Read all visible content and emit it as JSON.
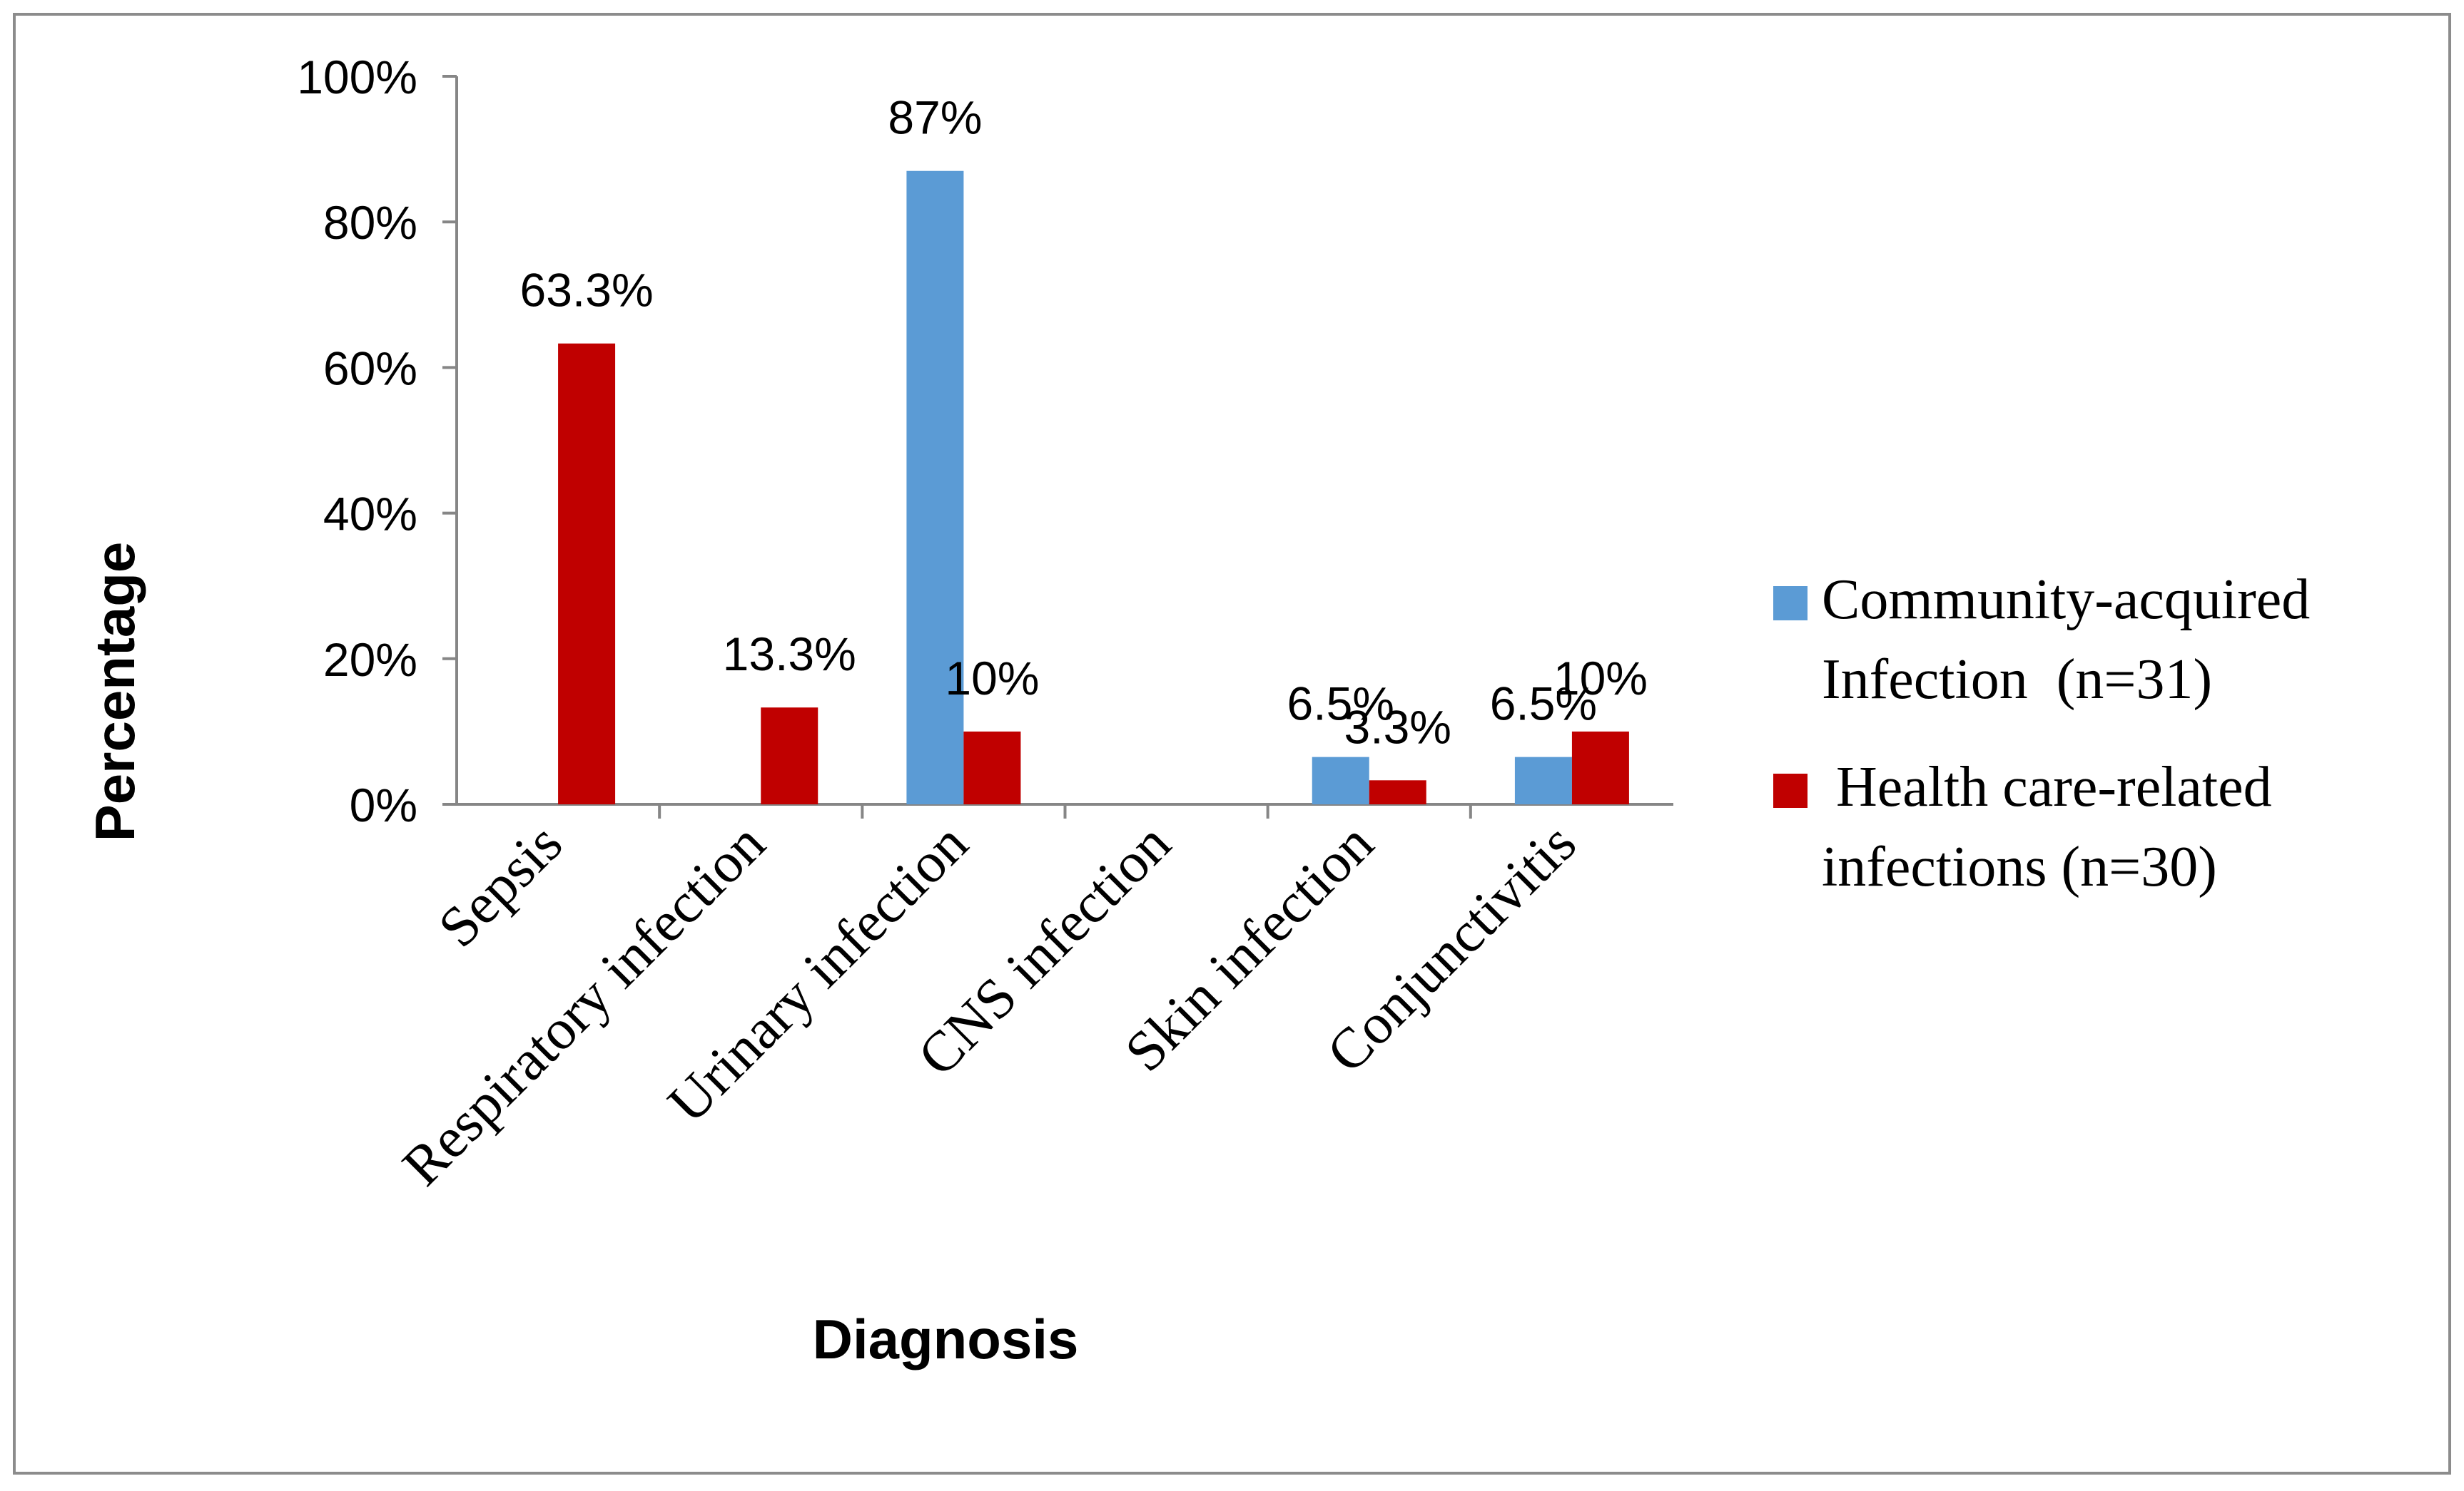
{
  "chart_data": {
    "type": "bar",
    "title": "",
    "xlabel": "Diagnosis",
    "ylabel": "Percentage",
    "ylim": [
      0,
      100
    ],
    "yticks": [
      {
        "value": 0,
        "label": "0%"
      },
      {
        "value": 20,
        "label": "20%"
      },
      {
        "value": 40,
        "label": "40%"
      },
      {
        "value": 60,
        "label": "60%"
      },
      {
        "value": 80,
        "label": "80%"
      },
      {
        "value": 100,
        "label": "100%"
      }
    ],
    "categories": [
      "Sepsis",
      "Respiratory infection",
      "Urinary infection",
      "CNS infection",
      "Skin infection",
      "Conjunctivitis"
    ],
    "series": [
      {
        "name_lines": [
          "Community-acquired",
          "Infection  (n=31)"
        ],
        "color": "#5B9BD5",
        "values": [
          0,
          0,
          87,
          0,
          6.5,
          6.5
        ],
        "labels": [
          "",
          "",
          "87%",
          "",
          "6.5%",
          "6.5%"
        ]
      },
      {
        "name_lines": [
          " Health care-related",
          "infections (n=30)"
        ],
        "color": "#C00000",
        "values": [
          63.3,
          13.3,
          10,
          0,
          3.3,
          10
        ],
        "labels": [
          "63.3%",
          "13.3%",
          "10%",
          "",
          "3.3%",
          "10%"
        ]
      }
    ],
    "legend_position": "right",
    "grid": false
  }
}
